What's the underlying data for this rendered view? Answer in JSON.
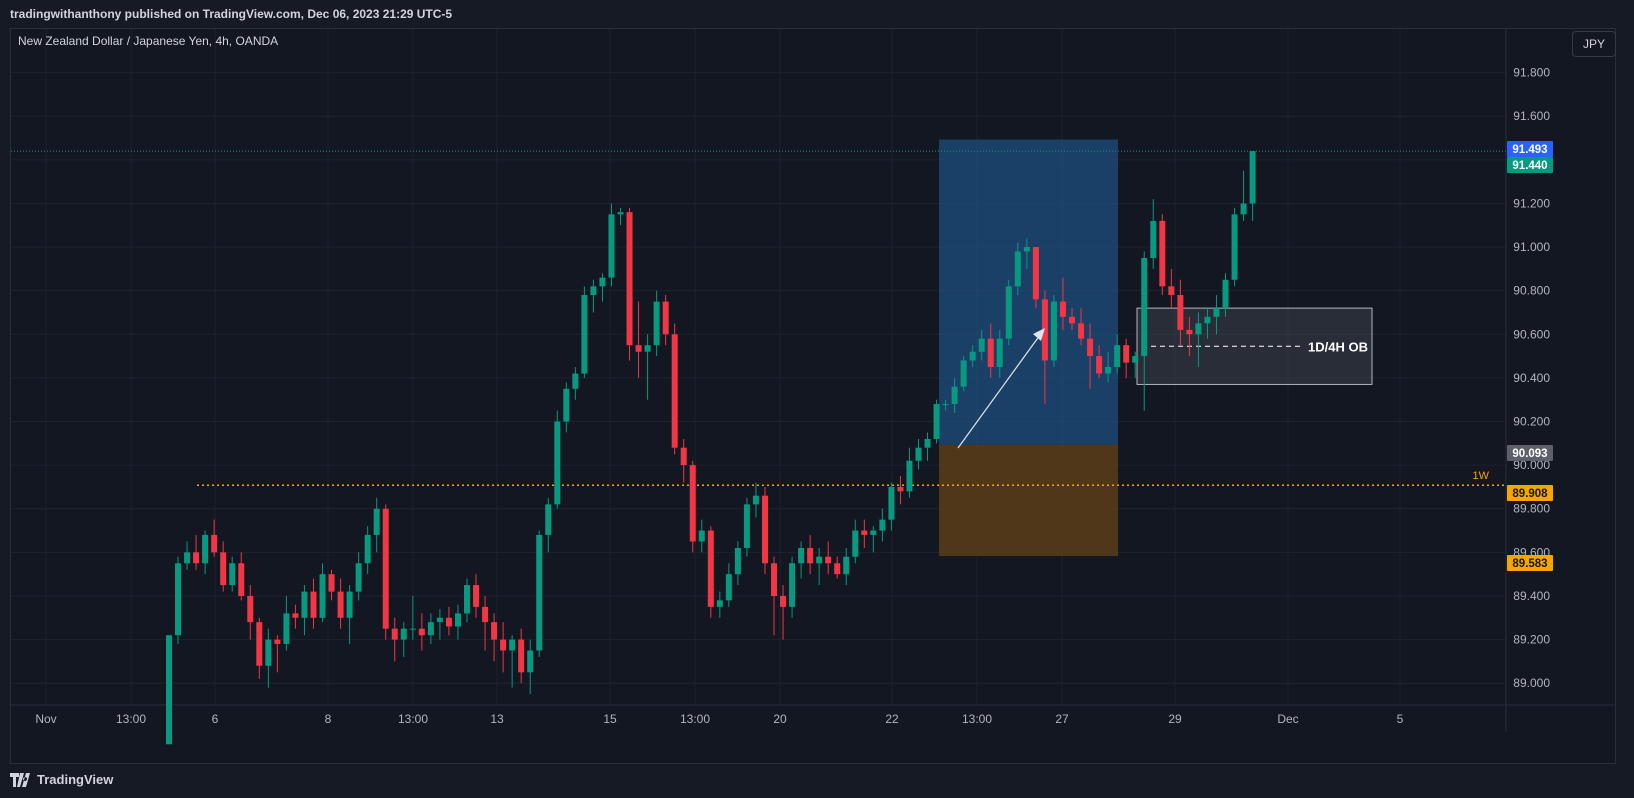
{
  "header": {
    "publisher": "tradingwithanthony published on TradingView.com, Dec 06, 2023 21:29 UTC-5"
  },
  "legend": {
    "symbol": "New Zealand Dollar / Japanese Yen, 4h, OANDA"
  },
  "currency_button": "JPY",
  "footer": {
    "brand": "TradingView"
  },
  "colors": {
    "up": "#089981",
    "down": "#f23645",
    "background": "#131722",
    "grid": "#1e222d",
    "weekly_level": "#f7a600",
    "target_zone": "#1f4f7f",
    "stop_zone": "#5c3d17",
    "ob_zone": "#5d606b",
    "blue_badge": "#2962ff",
    "green_badge": "#089981",
    "gray_badge": "#5d606b",
    "orange_badge": "#f7a600"
  },
  "chart_data": {
    "type": "candlestick",
    "y_axis": {
      "min": 88.9,
      "max": 92.0,
      "ticks": [
        "89.000",
        "89.200",
        "89.400",
        "89.600",
        "89.800",
        "90.000",
        "90.200",
        "90.400",
        "90.600",
        "90.800",
        "91.000",
        "91.200",
        "91.400",
        "91.600",
        "91.800"
      ]
    },
    "x_axis": {
      "labels": [
        "Nov",
        "13:00",
        "6",
        "8",
        "13:00",
        "13",
        "15",
        "13:00",
        "20",
        "22",
        "13:00",
        "27",
        "29",
        "Dec",
        "5"
      ]
    },
    "price_badges": [
      {
        "value": "91.493",
        "kind": "blue"
      },
      {
        "value": "91.440",
        "kind": "green"
      },
      {
        "value": "90.093",
        "kind": "gray"
      },
      {
        "value": "89.908",
        "kind": "orange"
      },
      {
        "value": "89.583",
        "kind": "orange"
      }
    ],
    "annotations": {
      "weekly_label": "1W",
      "weekly_level": 89.908,
      "ob_label": "1D/4H OB",
      "ob_top": 90.72,
      "ob_bottom": 90.37,
      "target_top": 91.493,
      "entry": 90.093,
      "stop": 89.583
    },
    "candles_ohlc": [
      [
        88.72,
        89.22,
        88.72,
        89.22
      ],
      [
        89.22,
        89.58,
        89.18,
        89.55
      ],
      [
        89.55,
        89.65,
        89.52,
        89.6
      ],
      [
        89.6,
        89.68,
        89.52,
        89.55
      ],
      [
        89.55,
        89.7,
        89.5,
        89.68
      ],
      [
        89.68,
        89.75,
        89.58,
        89.6
      ],
      [
        89.6,
        89.65,
        89.42,
        89.45
      ],
      [
        89.45,
        89.58,
        89.42,
        89.55
      ],
      [
        89.55,
        89.6,
        89.38,
        89.4
      ],
      [
        89.4,
        89.45,
        89.2,
        89.28
      ],
      [
        89.28,
        89.3,
        89.02,
        89.08
      ],
      [
        89.08,
        89.25,
        88.98,
        89.2
      ],
      [
        89.2,
        89.22,
        89.05,
        89.18
      ],
      [
        89.18,
        89.4,
        89.15,
        89.32
      ],
      [
        89.32,
        89.36,
        89.25,
        89.3
      ],
      [
        89.3,
        89.45,
        89.22,
        89.42
      ],
      [
        89.42,
        89.48,
        89.25,
        89.3
      ],
      [
        89.3,
        89.55,
        89.28,
        89.5
      ],
      [
        89.5,
        89.52,
        89.38,
        89.42
      ],
      [
        89.42,
        89.48,
        89.25,
        89.3
      ],
      [
        89.3,
        89.45,
        89.18,
        89.42
      ],
      [
        89.42,
        89.6,
        89.38,
        89.55
      ],
      [
        89.55,
        89.72,
        89.5,
        89.68
      ],
      [
        89.68,
        89.85,
        89.6,
        89.8
      ],
      [
        89.8,
        89.82,
        89.2,
        89.25
      ],
      [
        89.25,
        89.3,
        89.1,
        89.2
      ],
      [
        89.2,
        89.28,
        89.12,
        89.25
      ],
      [
        89.25,
        89.4,
        89.2,
        89.25
      ],
      [
        89.25,
        89.32,
        89.15,
        89.22
      ],
      [
        89.22,
        89.32,
        89.18,
        89.28
      ],
      [
        89.28,
        89.34,
        89.2,
        89.3
      ],
      [
        89.3,
        89.35,
        89.22,
        89.26
      ],
      [
        89.26,
        89.36,
        89.2,
        89.32
      ],
      [
        89.32,
        89.48,
        89.28,
        89.45
      ],
      [
        89.45,
        89.5,
        89.3,
        89.35
      ],
      [
        89.35,
        89.4,
        89.15,
        89.28
      ],
      [
        89.28,
        89.32,
        89.1,
        89.2
      ],
      [
        89.2,
        89.28,
        89.05,
        89.15
      ],
      [
        89.15,
        89.22,
        88.98,
        89.2
      ],
      [
        89.2,
        89.25,
        89.0,
        89.05
      ],
      [
        89.05,
        89.2,
        88.95,
        89.15
      ],
      [
        89.15,
        89.7,
        89.12,
        89.68
      ],
      [
        89.68,
        89.85,
        89.6,
        89.82
      ],
      [
        89.82,
        90.25,
        89.8,
        90.2
      ],
      [
        90.2,
        90.38,
        90.15,
        90.35
      ],
      [
        90.35,
        90.45,
        90.3,
        90.42
      ],
      [
        90.42,
        90.82,
        90.4,
        90.78
      ],
      [
        90.78,
        90.85,
        90.7,
        90.82
      ],
      [
        90.82,
        90.88,
        90.75,
        90.86
      ],
      [
        90.86,
        91.2,
        90.82,
        91.15
      ],
      [
        91.15,
        91.18,
        91.1,
        91.16
      ],
      [
        91.16,
        91.18,
        90.48,
        90.55
      ],
      [
        90.55,
        90.75,
        90.4,
        90.52
      ],
      [
        90.52,
        90.6,
        90.3,
        90.55
      ],
      [
        90.55,
        90.8,
        90.5,
        90.75
      ],
      [
        90.75,
        90.78,
        90.55,
        90.6
      ],
      [
        90.6,
        90.65,
        90.05,
        90.08
      ],
      [
        90.08,
        90.12,
        89.92,
        90.0
      ],
      [
        90.0,
        90.02,
        89.6,
        89.65
      ],
      [
        89.65,
        89.75,
        89.6,
        89.7
      ],
      [
        89.7,
        89.72,
        89.3,
        89.35
      ],
      [
        89.35,
        89.42,
        89.3,
        89.38
      ],
      [
        89.38,
        89.55,
        89.35,
        89.5
      ],
      [
        89.5,
        89.65,
        89.45,
        89.62
      ],
      [
        89.62,
        89.85,
        89.58,
        89.82
      ],
      [
        89.82,
        89.92,
        89.76,
        89.86
      ],
      [
        89.86,
        89.9,
        89.5,
        89.55
      ],
      [
        89.55,
        89.58,
        89.22,
        89.4
      ],
      [
        89.4,
        89.45,
        89.2,
        89.35
      ],
      [
        89.35,
        89.58,
        89.3,
        89.55
      ],
      [
        89.55,
        89.65,
        89.48,
        89.62
      ],
      [
        89.62,
        89.68,
        89.5,
        89.55
      ],
      [
        89.55,
        89.62,
        89.45,
        89.58
      ],
      [
        89.58,
        89.65,
        89.5,
        89.55
      ],
      [
        89.55,
        89.58,
        89.48,
        89.5
      ],
      [
        89.5,
        89.62,
        89.45,
        89.58
      ],
      [
        89.58,
        89.75,
        89.55,
        89.7
      ],
      [
        89.7,
        89.75,
        89.62,
        89.68
      ],
      [
        89.68,
        89.72,
        89.6,
        89.7
      ],
      [
        89.7,
        89.8,
        89.65,
        89.75
      ],
      [
        89.75,
        89.92,
        89.7,
        89.9
      ],
      [
        89.9,
        89.95,
        89.82,
        89.88
      ],
      [
        89.88,
        90.08,
        89.85,
        90.02
      ],
      [
        90.02,
        90.12,
        89.98,
        90.08
      ],
      [
        90.08,
        90.15,
        90.02,
        90.12
      ],
      [
        90.12,
        90.3,
        90.1,
        90.28
      ],
      [
        90.28,
        90.3,
        90.25,
        90.28
      ],
      [
        90.28,
        90.4,
        90.24,
        90.36
      ],
      [
        90.36,
        90.5,
        90.34,
        90.48
      ],
      [
        90.48,
        90.55,
        90.45,
        90.52
      ],
      [
        90.52,
        90.62,
        90.48,
        90.58
      ],
      [
        90.58,
        90.65,
        90.4,
        90.45
      ],
      [
        90.45,
        90.62,
        90.4,
        90.58
      ],
      [
        90.58,
        90.85,
        90.55,
        90.82
      ],
      [
        90.82,
        91.02,
        90.78,
        90.98
      ],
      [
        90.98,
        91.04,
        90.9,
        91.0
      ],
      [
        91.0,
        91.0,
        90.72,
        90.76
      ],
      [
        90.76,
        90.8,
        90.28,
        90.48
      ],
      [
        90.48,
        90.78,
        90.45,
        90.75
      ],
      [
        90.75,
        90.86,
        90.62,
        90.68
      ],
      [
        90.68,
        90.72,
        90.62,
        90.65
      ],
      [
        90.65,
        90.72,
        90.55,
        90.58
      ],
      [
        90.58,
        90.65,
        90.35,
        90.5
      ],
      [
        90.5,
        90.55,
        90.4,
        90.42
      ],
      [
        90.42,
        90.52,
        90.38,
        90.45
      ],
      [
        90.45,
        90.6,
        90.42,
        90.55
      ],
      [
        90.55,
        90.58,
        90.4,
        90.47
      ],
      [
        90.47,
        90.52,
        90.4,
        90.5
      ],
      [
        90.5,
        90.98,
        90.25,
        90.95
      ],
      [
        90.95,
        91.22,
        90.9,
        91.12
      ],
      [
        91.12,
        91.15,
        90.78,
        90.82
      ],
      [
        90.82,
        90.9,
        90.72,
        90.78
      ],
      [
        90.78,
        90.85,
        90.55,
        90.62
      ],
      [
        90.62,
        90.68,
        90.5,
        90.6
      ],
      [
        90.6,
        90.7,
        90.45,
        90.65
      ],
      [
        90.65,
        90.72,
        90.58,
        90.68
      ],
      [
        90.68,
        90.78,
        90.6,
        90.72
      ],
      [
        90.72,
        90.88,
        90.68,
        90.85
      ],
      [
        90.85,
        91.18,
        90.82,
        91.15
      ],
      [
        91.15,
        91.35,
        91.12,
        91.2
      ],
      [
        91.2,
        91.44,
        91.12,
        91.44
      ]
    ]
  }
}
